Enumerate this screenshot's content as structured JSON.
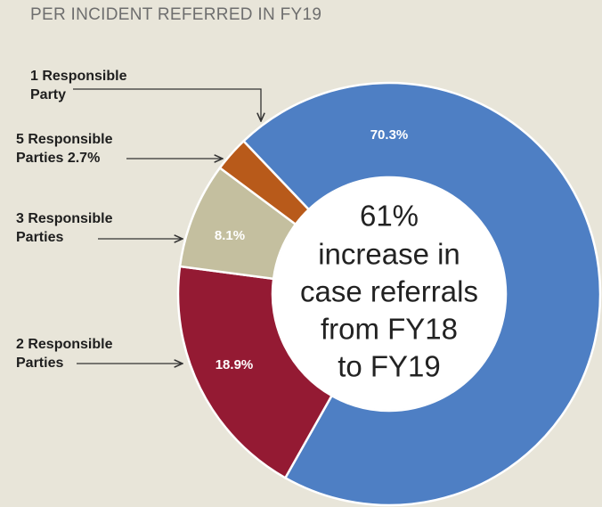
{
  "chart_data": {
    "type": "donut",
    "title": "PER INCIDENT REFERRED IN FY19",
    "categories": [
      "1 Responsible Party",
      "2 Responsible Parties",
      "3 Responsible Parties",
      "5 Responsible Parties"
    ],
    "values": [
      70.3,
      18.9,
      8.1,
      2.7
    ],
    "value_labels": [
      "70.3%",
      "18.9%",
      "8.1%",
      "2.7%"
    ],
    "colors": [
      "#4e7fc4",
      "#941a33",
      "#c4bf9f",
      "#b85a1a"
    ],
    "center_text": [
      "61%",
      "increase in",
      "case referrals",
      "from FY18",
      "to FY19"
    ]
  }
}
